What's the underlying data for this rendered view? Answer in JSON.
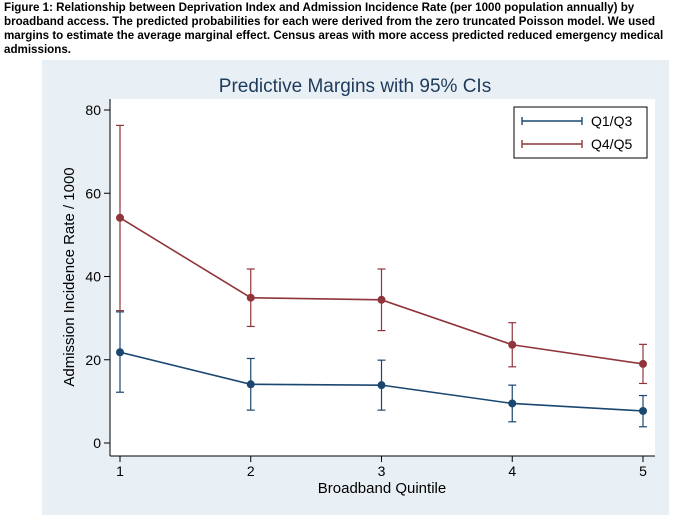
{
  "caption": "Figure 1: Relationship between Deprivation Index and Admission Incidence Rate (per 1000 population annually) by broadband access. The predicted probabilities for each were derived from the zero truncated Poisson model.  We used margins to estimate the average marginal effect.  Census areas with more access predicted reduced emergency medical admissions.",
  "chart_data": {
    "type": "line",
    "title": "Predictive Margins with 95% CIs",
    "xlabel": "Broadband Quintile",
    "ylabel": "Admission Incidence Rate / 1000",
    "x": [
      1,
      2,
      3,
      4,
      5
    ],
    "xticks": [
      "1",
      "2",
      "3",
      "4",
      "5"
    ],
    "yticks": [
      "0",
      "20",
      "40",
      "60",
      "80"
    ],
    "xlim": [
      1,
      5
    ],
    "ylim": [
      0,
      80
    ],
    "legend_position": "top-right",
    "series": [
      {
        "name": "Q1/Q3",
        "color": "#1a476f",
        "values": [
          21.8,
          14.1,
          13.9,
          9.5,
          7.7
        ],
        "ci_lower": [
          12.2,
          7.9,
          7.9,
          5.1,
          3.9
        ],
        "ci_upper": [
          31.5,
          20.3,
          19.9,
          13.9,
          11.4
        ]
      },
      {
        "name": "Q4/Q5",
        "color": "#90353b",
        "values": [
          54.1,
          34.9,
          34.4,
          23.6,
          19.0
        ],
        "ci_lower": [
          31.8,
          28.0,
          27.0,
          18.3,
          14.3
        ],
        "ci_upper": [
          76.3,
          41.8,
          41.8,
          28.9,
          23.7
        ]
      }
    ]
  }
}
